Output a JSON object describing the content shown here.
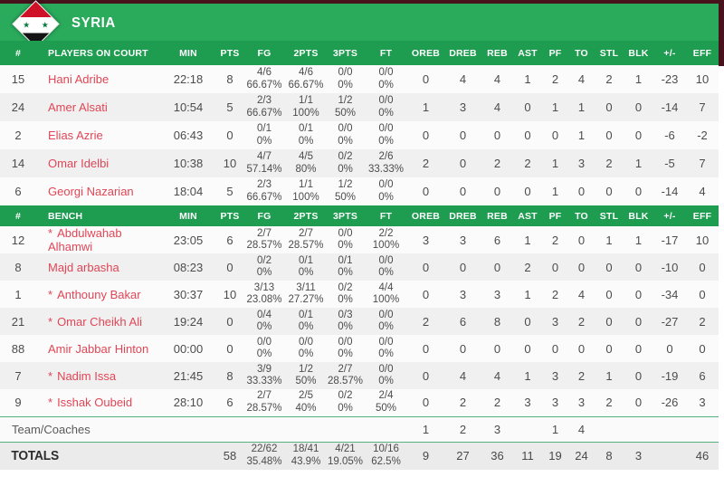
{
  "team": {
    "name": "SYRIA"
  },
  "colors": {
    "banner_green": "#2aab5c",
    "header_green": "#1e9c50",
    "top_bar_maroon": "#47121b",
    "player_name_red": "#e04656",
    "divider_green": "#55b27e",
    "flag_red": "#ce1126",
    "flag_black": "#141414",
    "flag_star_green": "#007a3d"
  },
  "flag_stars": "★ ★",
  "columns": {
    "num": "#",
    "on_court_label": "PLAYERS ON COURT",
    "bench_label": "BENCH",
    "stats": [
      "MIN",
      "PTS",
      "FG",
      "2PTS",
      "3PTS",
      "FT",
      "OREB",
      "DREB",
      "REB",
      "AST",
      "PF",
      "TO",
      "STL",
      "BLK",
      "+/-",
      "EFF"
    ]
  },
  "on_court": [
    {
      "num": "15",
      "star": false,
      "name": "Hani Adribe",
      "min": "22:18",
      "pts": "8",
      "fg": "4/6",
      "fg_pct": "66.67%",
      "p2": "4/6",
      "p2_pct": "66.67%",
      "p3": "0/0",
      "p3_pct": "0%",
      "ft": "0/0",
      "ft_pct": "0%",
      "oreb": "0",
      "dreb": "4",
      "reb": "4",
      "ast": "1",
      "pf": "2",
      "to": "4",
      "stl": "2",
      "blk": "1",
      "pm": "-23",
      "eff": "10"
    },
    {
      "num": "24",
      "star": false,
      "name": "Amer Alsati",
      "min": "10:54",
      "pts": "5",
      "fg": "2/3",
      "fg_pct": "66.67%",
      "p2": "1/1",
      "p2_pct": "100%",
      "p3": "1/2",
      "p3_pct": "50%",
      "ft": "0/0",
      "ft_pct": "0%",
      "oreb": "1",
      "dreb": "3",
      "reb": "4",
      "ast": "0",
      "pf": "1",
      "to": "1",
      "stl": "0",
      "blk": "0",
      "pm": "-14",
      "eff": "7"
    },
    {
      "num": "2",
      "star": false,
      "name": "Elias Azrie",
      "min": "06:43",
      "pts": "0",
      "fg": "0/1",
      "fg_pct": "0%",
      "p2": "0/1",
      "p2_pct": "0%",
      "p3": "0/0",
      "p3_pct": "0%",
      "ft": "0/0",
      "ft_pct": "0%",
      "oreb": "0",
      "dreb": "0",
      "reb": "0",
      "ast": "0",
      "pf": "0",
      "to": "1",
      "stl": "0",
      "blk": "0",
      "pm": "-6",
      "eff": "-2"
    },
    {
      "num": "14",
      "star": false,
      "name": "Omar Idelbi",
      "min": "10:38",
      "pts": "10",
      "fg": "4/7",
      "fg_pct": "57.14%",
      "p2": "4/5",
      "p2_pct": "80%",
      "p3": "0/2",
      "p3_pct": "0%",
      "ft": "2/6",
      "ft_pct": "33.33%",
      "oreb": "2",
      "dreb": "0",
      "reb": "2",
      "ast": "2",
      "pf": "1",
      "to": "3",
      "stl": "2",
      "blk": "1",
      "pm": "-5",
      "eff": "7"
    },
    {
      "num": "6",
      "star": false,
      "name": "Georgi Nazarian",
      "min": "18:04",
      "pts": "5",
      "fg": "2/3",
      "fg_pct": "66.67%",
      "p2": "1/1",
      "p2_pct": "100%",
      "p3": "1/2",
      "p3_pct": "50%",
      "ft": "0/0",
      "ft_pct": "0%",
      "oreb": "0",
      "dreb": "0",
      "reb": "0",
      "ast": "0",
      "pf": "1",
      "to": "0",
      "stl": "0",
      "blk": "0",
      "pm": "-14",
      "eff": "4"
    }
  ],
  "bench": [
    {
      "num": "12",
      "star": true,
      "name": "Abdulwahab Alhamwi",
      "min": "23:05",
      "pts": "6",
      "fg": "2/7",
      "fg_pct": "28.57%",
      "p2": "2/7",
      "p2_pct": "28.57%",
      "p3": "0/0",
      "p3_pct": "0%",
      "ft": "2/2",
      "ft_pct": "100%",
      "oreb": "3",
      "dreb": "3",
      "reb": "6",
      "ast": "1",
      "pf": "2",
      "to": "0",
      "stl": "1",
      "blk": "1",
      "pm": "-17",
      "eff": "10"
    },
    {
      "num": "8",
      "star": false,
      "name": "Majd arbasha",
      "min": "08:23",
      "pts": "0",
      "fg": "0/2",
      "fg_pct": "0%",
      "p2": "0/1",
      "p2_pct": "0%",
      "p3": "0/1",
      "p3_pct": "0%",
      "ft": "0/0",
      "ft_pct": "0%",
      "oreb": "0",
      "dreb": "0",
      "reb": "0",
      "ast": "2",
      "pf": "0",
      "to": "0",
      "stl": "0",
      "blk": "0",
      "pm": "-10",
      "eff": "0"
    },
    {
      "num": "1",
      "star": true,
      "name": "Anthouny Bakar",
      "min": "30:37",
      "pts": "10",
      "fg": "3/13",
      "fg_pct": "23.08%",
      "p2": "3/11",
      "p2_pct": "27.27%",
      "p3": "0/2",
      "p3_pct": "0%",
      "ft": "4/4",
      "ft_pct": "100%",
      "oreb": "0",
      "dreb": "3",
      "reb": "3",
      "ast": "1",
      "pf": "2",
      "to": "4",
      "stl": "0",
      "blk": "0",
      "pm": "-34",
      "eff": "0"
    },
    {
      "num": "21",
      "star": true,
      "name": "Omar Cheikh Ali",
      "min": "19:24",
      "pts": "0",
      "fg": "0/4",
      "fg_pct": "0%",
      "p2": "0/1",
      "p2_pct": "0%",
      "p3": "0/3",
      "p3_pct": "0%",
      "ft": "0/0",
      "ft_pct": "0%",
      "oreb": "2",
      "dreb": "6",
      "reb": "8",
      "ast": "0",
      "pf": "3",
      "to": "2",
      "stl": "0",
      "blk": "0",
      "pm": "-27",
      "eff": "2"
    },
    {
      "num": "88",
      "star": false,
      "name": "Amir Jabbar Hinton",
      "min": "00:00",
      "pts": "0",
      "fg": "0/0",
      "fg_pct": "0%",
      "p2": "0/0",
      "p2_pct": "0%",
      "p3": "0/0",
      "p3_pct": "0%",
      "ft": "0/0",
      "ft_pct": "0%",
      "oreb": "0",
      "dreb": "0",
      "reb": "0",
      "ast": "0",
      "pf": "0",
      "to": "0",
      "stl": "0",
      "blk": "0",
      "pm": "0",
      "eff": "0"
    },
    {
      "num": "7",
      "star": true,
      "name": "Nadim Issa",
      "min": "21:45",
      "pts": "8",
      "fg": "3/9",
      "fg_pct": "33.33%",
      "p2": "1/2",
      "p2_pct": "50%",
      "p3": "2/7",
      "p3_pct": "28.57%",
      "ft": "0/0",
      "ft_pct": "0%",
      "oreb": "0",
      "dreb": "4",
      "reb": "4",
      "ast": "1",
      "pf": "3",
      "to": "2",
      "stl": "1",
      "blk": "0",
      "pm": "-19",
      "eff": "6"
    },
    {
      "num": "9",
      "star": true,
      "name": "Isshak Oubeid",
      "min": "28:10",
      "pts": "6",
      "fg": "2/7",
      "fg_pct": "28.57%",
      "p2": "2/5",
      "p2_pct": "40%",
      "p3": "0/2",
      "p3_pct": "0%",
      "ft": "2/4",
      "ft_pct": "50%",
      "oreb": "0",
      "dreb": "2",
      "reb": "2",
      "ast": "3",
      "pf": "3",
      "to": "3",
      "stl": "2",
      "blk": "0",
      "pm": "-26",
      "eff": "3"
    }
  ],
  "team_coaches": {
    "label": "Team/Coaches",
    "min": "",
    "pts": "",
    "fg": "",
    "fg_pct": "",
    "p2": "",
    "p2_pct": "",
    "p3": "",
    "p3_pct": "",
    "ft": "",
    "ft_pct": "",
    "oreb": "1",
    "dreb": "2",
    "reb": "3",
    "ast": "",
    "pf": "1",
    "to": "4",
    "stl": "",
    "blk": "",
    "pm": "",
    "eff": ""
  },
  "totals": {
    "label": "TOTALS",
    "min": "",
    "pts": "58",
    "fg": "22/62",
    "fg_pct": "35.48%",
    "p2": "18/41",
    "p2_pct": "43.9%",
    "p3": "4/21",
    "p3_pct": "19.05%",
    "ft": "10/16",
    "ft_pct": "62.5%",
    "oreb": "9",
    "dreb": "27",
    "reb": "36",
    "ast": "11",
    "pf": "19",
    "to": "24",
    "stl": "8",
    "blk": "3",
    "pm": "",
    "eff": "46"
  }
}
